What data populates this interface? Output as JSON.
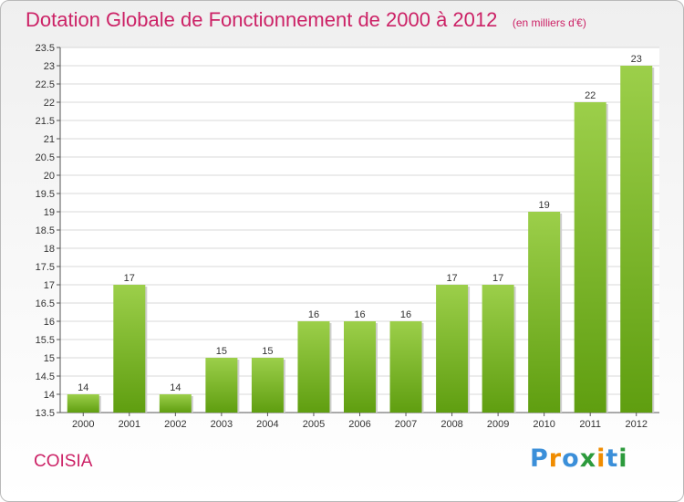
{
  "title": "Dotation Globale de Fonctionnement de 2000 à 2012",
  "unit_note": "(en milliers d'€)",
  "commune": "COISIA",
  "logo": {
    "text": "Proxiti",
    "letters": [
      "P",
      "r",
      "o",
      "x",
      "i",
      "t",
      "i"
    ],
    "colors": [
      "#3b8fd9",
      "#f08c00",
      "#3b8fd9",
      "#2c9a3c",
      "#f08c00",
      "#3b8fd9",
      "#2c9a3c"
    ]
  },
  "colors": {
    "title": "#cc2266",
    "bar_light": "#9ccf4a",
    "bar_dark": "#5f9e10",
    "grid": "#d8d8d8"
  },
  "chart_data": {
    "type": "bar",
    "categories": [
      "2000",
      "2001",
      "2002",
      "2003",
      "2004",
      "2005",
      "2006",
      "2007",
      "2008",
      "2009",
      "2010",
      "2011",
      "2012"
    ],
    "values": [
      14,
      17,
      14,
      15,
      15,
      16,
      16,
      16,
      17,
      17,
      19,
      22,
      23
    ],
    "value_labels": [
      "14",
      "17",
      "14",
      "15",
      "15",
      "16",
      "16",
      "16",
      "17",
      "17",
      "19",
      "22",
      "23"
    ],
    "ylim": [
      13.5,
      23.5
    ],
    "yticks": [
      13.5,
      14,
      14.5,
      15,
      15.5,
      16,
      16.5,
      17,
      17.5,
      18,
      18.5,
      19,
      19.5,
      20,
      20.5,
      21,
      21.5,
      22,
      22.5,
      23,
      23.5
    ],
    "ytick_labels": [
      "13.5",
      "14",
      "14.5",
      "15",
      "15.5",
      "16",
      "16.5",
      "17",
      "17.5",
      "18",
      "18.5",
      "19",
      "19.5",
      "20",
      "20.5",
      "21",
      "21.5",
      "22",
      "22.5",
      "23",
      "23.5"
    ],
    "grid": true,
    "xlabel": "",
    "ylabel": ""
  }
}
